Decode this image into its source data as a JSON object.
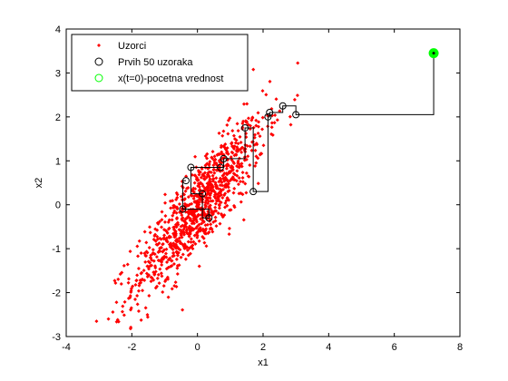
{
  "chart_data": {
    "type": "scatter",
    "xlabel": "x1",
    "ylabel": "x2",
    "xlim": [
      -4,
      8
    ],
    "ylim": [
      -3,
      4
    ],
    "xticks": [
      "-4",
      "-2",
      "0",
      "2",
      "4",
      "6",
      "8"
    ],
    "yticks": [
      "-3",
      "-2",
      "-1",
      "0",
      "1",
      "2",
      "3",
      "4"
    ],
    "grid": false,
    "legend_position": "top-left",
    "legend": [
      {
        "label": "Uzorci",
        "marker": "dot",
        "color": "#ff0000"
      },
      {
        "label": "Prvih 50 uzoraka",
        "marker": "circle",
        "color": "#000000"
      },
      {
        "label": "x(t=0)-pocetna vrednost",
        "marker": "circle",
        "color": "#00ff00"
      }
    ],
    "distribution": {
      "mean": [
        0.05,
        -0.05
      ],
      "std": [
        1.0,
        1.0
      ],
      "correlation": 0.87,
      "count": 1000
    },
    "start_point": {
      "x": 7.2,
      "y": 3.45
    },
    "path_points": [
      [
        7.2,
        3.45
      ],
      [
        3.0,
        2.05
      ],
      [
        2.6,
        2.25
      ],
      [
        2.2,
        2.1
      ],
      [
        2.15,
        2.0
      ],
      [
        1.7,
        0.3
      ],
      [
        1.45,
        1.75
      ],
      [
        0.8,
        1.05
      ],
      [
        0.7,
        0.85
      ],
      [
        -0.2,
        0.85
      ],
      [
        0.15,
        0.25
      ],
      [
        0.35,
        -0.3
      ],
      [
        -0.45,
        -0.1
      ],
      [
        -0.35,
        0.55
      ]
    ]
  }
}
